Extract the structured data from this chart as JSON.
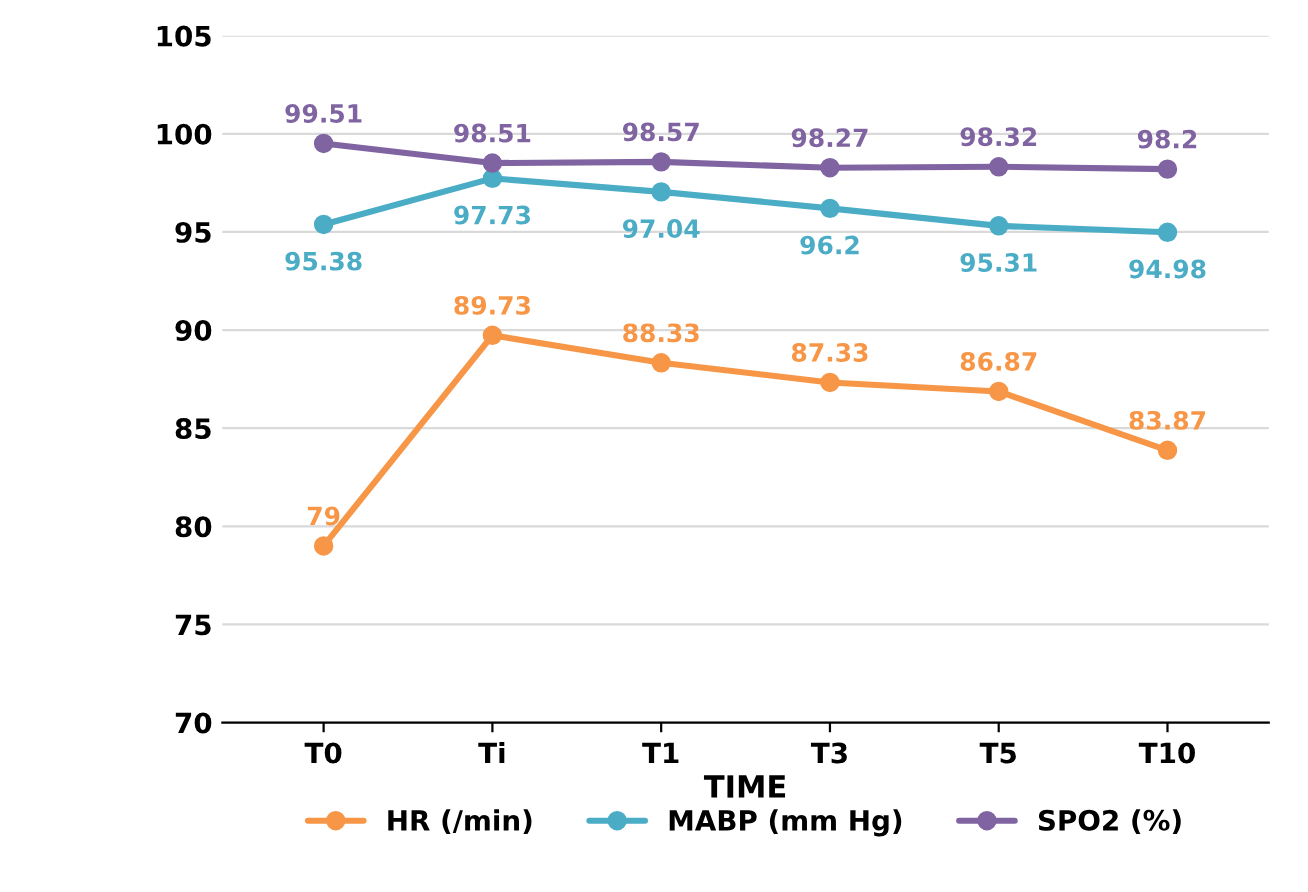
{
  "chart_data": {
    "type": "line",
    "xlabel": "TIME",
    "categories": [
      "T0",
      "Ti",
      "T1",
      "T3",
      "T5",
      "T10"
    ],
    "series": [
      {
        "name": "HR (/min)",
        "color": "#f79646",
        "values": [
          79,
          89.73,
          88.33,
          87.33,
          86.87,
          83.87
        ]
      },
      {
        "name": "MABP (mm Hg)",
        "color": "#4bacc6",
        "values": [
          95.38,
          97.73,
          97.04,
          96.2,
          95.31,
          94.98
        ]
      },
      {
        "name": "SPO2 (%)",
        "color": "#8064a2",
        "values": [
          99.51,
          98.51,
          98.57,
          98.27,
          98.32,
          98.2
        ]
      }
    ],
    "ylim": [
      70,
      105
    ],
    "yticks": [
      70,
      75,
      80,
      85,
      90,
      95,
      100,
      105
    ],
    "grid": "y",
    "legend": "bottom",
    "marker": "circle",
    "line_style": "solid",
    "data_labels": true
  }
}
